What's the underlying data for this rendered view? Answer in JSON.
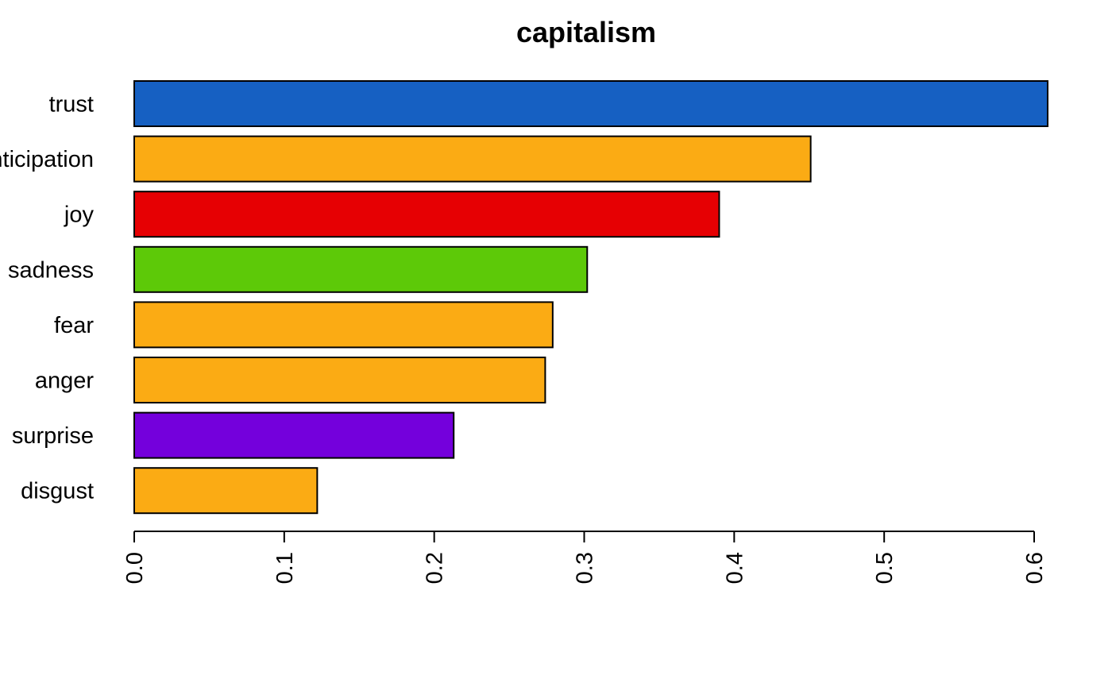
{
  "chart_data": {
    "type": "bar",
    "orientation": "horizontal",
    "title": "capitalism",
    "xlabel": "",
    "ylabel": "",
    "categories": [
      "trust",
      "anticipation",
      "joy",
      "sadness",
      "fear",
      "anger",
      "surprise",
      "disgust"
    ],
    "values": [
      0.609,
      0.451,
      0.39,
      0.302,
      0.279,
      0.274,
      0.213,
      0.122
    ],
    "colors": [
      "#1660C2",
      "#FBAB14",
      "#E60003",
      "#5DC908",
      "#FBAB14",
      "#FBAB14",
      "#7400DC",
      "#FBAB14"
    ],
    "xlim": [
      0,
      0.6
    ],
    "xticks": [
      "0.0",
      "0.1",
      "0.2",
      "0.3",
      "0.4",
      "0.5",
      "0.6"
    ],
    "grid": false,
    "legend": "none"
  }
}
